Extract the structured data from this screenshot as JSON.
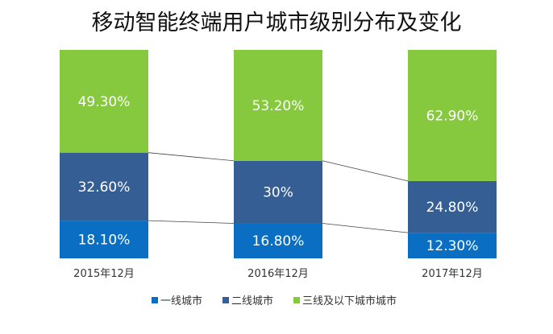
{
  "chart_data": {
    "type": "bar",
    "stacked": true,
    "percent": true,
    "title": "移动智能终端用户城市级别分布及变化",
    "categories": [
      "2015年12月",
      "2016年12月",
      "2017年12月"
    ],
    "series": [
      {
        "name": "一线城市",
        "values": [
          18.1,
          16.8,
          12.3
        ],
        "labels": [
          "18.10%",
          "16.80%",
          "12.30%"
        ],
        "color": "#0a6fc2"
      },
      {
        "name": "二线城市",
        "values": [
          32.6,
          30,
          24.8
        ],
        "labels": [
          "32.60%",
          "30%",
          "24.80%"
        ],
        "color": "#355e95"
      },
      {
        "name": "三线及以下城市城市",
        "values": [
          49.3,
          53.2,
          62.9
        ],
        "labels": [
          "49.30%",
          "53.20%",
          "62.90%"
        ],
        "color": "#86c93f"
      }
    ],
    "ylim": [
      0,
      100
    ],
    "legend_position": "bottom",
    "connector_lines": true,
    "grid": false
  }
}
